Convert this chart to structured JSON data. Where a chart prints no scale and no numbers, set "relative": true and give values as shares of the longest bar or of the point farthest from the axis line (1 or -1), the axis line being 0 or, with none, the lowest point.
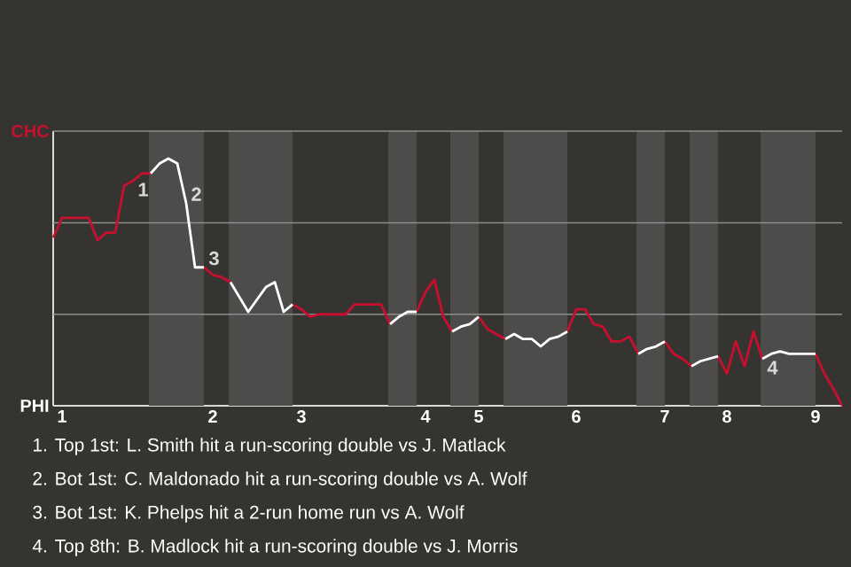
{
  "chart_data": {
    "type": "line",
    "relative": true,
    "categories": [
      null,
      "1",
      null,
      null,
      null,
      null,
      null,
      null,
      null,
      null,
      null,
      null,
      null,
      null,
      null,
      null,
      null,
      null,
      "2",
      null,
      null,
      null,
      null,
      null,
      null,
      null,
      null,
      null,
      "3",
      null,
      null,
      null,
      null,
      null,
      null,
      null,
      null,
      null,
      null,
      null,
      null,
      null,
      "4",
      null,
      null,
      null,
      null,
      null,
      "5",
      null,
      null,
      null,
      null,
      null,
      null,
      null,
      null,
      null,
      null,
      "6",
      null,
      null,
      null,
      null,
      null,
      null,
      null,
      null,
      null,
      "7",
      null,
      null,
      null,
      null,
      null,
      null,
      "8",
      null,
      null,
      null,
      null,
      null,
      null,
      null,
      null,
      null,
      "9",
      null,
      null,
      null
    ],
    "series": [
      {
        "color": "#c8102e",
        "values": [
          0.68,
          0.76,
          0.76,
          0.76,
          0.76,
          0.67,
          0.7,
          0.7,
          0.89,
          0.91,
          0.94,
          0.94,
          null,
          null,
          null,
          null,
          null,
          0.56,
          0.53,
          0.52,
          0.5,
          null,
          null,
          null,
          null,
          null,
          null,
          0.41,
          0.39,
          0.36,
          0.37,
          0.37,
          0.37,
          0.37,
          0.41,
          0.41,
          0.41,
          0.41,
          0.33,
          null,
          null,
          0.38,
          0.46,
          0.51,
          0.36,
          0.3,
          null,
          null,
          0.36,
          0.31,
          0.29,
          0.27,
          null,
          null,
          null,
          null,
          null,
          null,
          0.3,
          0.39,
          0.39,
          0.33,
          0.32,
          0.26,
          0.26,
          0.28,
          0.21,
          null,
          null,
          0.26,
          0.21,
          0.19,
          0.16,
          null,
          null,
          0.2,
          0.13,
          0.26,
          0.16,
          0.3,
          0.19,
          null,
          null,
          null,
          null,
          null,
          0.21,
          0.13,
          0.07,
          0
        ]
      },
      {
        "color": "#ffffff",
        "values": [
          null,
          null,
          null,
          null,
          null,
          null,
          null,
          null,
          null,
          null,
          null,
          0.94,
          0.98,
          1,
          0.98,
          0.82,
          0.56,
          0.56,
          null,
          null,
          0.5,
          0.44,
          0.38,
          0.43,
          0.48,
          0.5,
          0.38,
          0.41,
          null,
          null,
          null,
          null,
          null,
          null,
          null,
          null,
          null,
          null,
          0.33,
          0.36,
          0.38,
          0.38,
          null,
          null,
          null,
          0.3,
          0.32,
          0.33,
          0.36,
          null,
          null,
          0.27,
          0.29,
          0.27,
          0.27,
          0.24,
          0.27,
          0.28,
          0.3,
          null,
          null,
          null,
          null,
          null,
          null,
          null,
          0.21,
          0.23,
          0.24,
          0.26,
          null,
          null,
          0.16,
          0.18,
          0.19,
          0.2,
          null,
          null,
          null,
          null,
          0.19,
          0.21,
          0.22,
          0.21,
          0.21,
          0.21,
          0.21,
          null,
          null,
          null
        ]
      }
    ],
    "ref_lines": [
      {
        "axis": "y",
        "value": 0.37,
        "color": "#8c8c8c"
      },
      {
        "axis": "y",
        "value": 0.74,
        "color": "#8c8c8c"
      }
    ],
    "annotations": [
      "CHC",
      "PHI",
      {
        "text": "1",
        "y": 0.91
      },
      {
        "text": "2",
        "y": 0.82
      },
      {
        "text": "3",
        "y": 0.56
      },
      {
        "text": "4",
        "y": 0.19
      },
      "1. Top 1st: L. Smith hit a run-scoring double vs J. Matlack",
      "2. Bot 1st: C. Maldonado hit a run-scoring double vs A. Wolf",
      "3. Bot 1st: K. Phelps hit a 2-run home run vs A. Wolf",
      "4. Top 8th: B. Madlock hit a run-scoring double vs J. Morris"
    ]
  }
}
